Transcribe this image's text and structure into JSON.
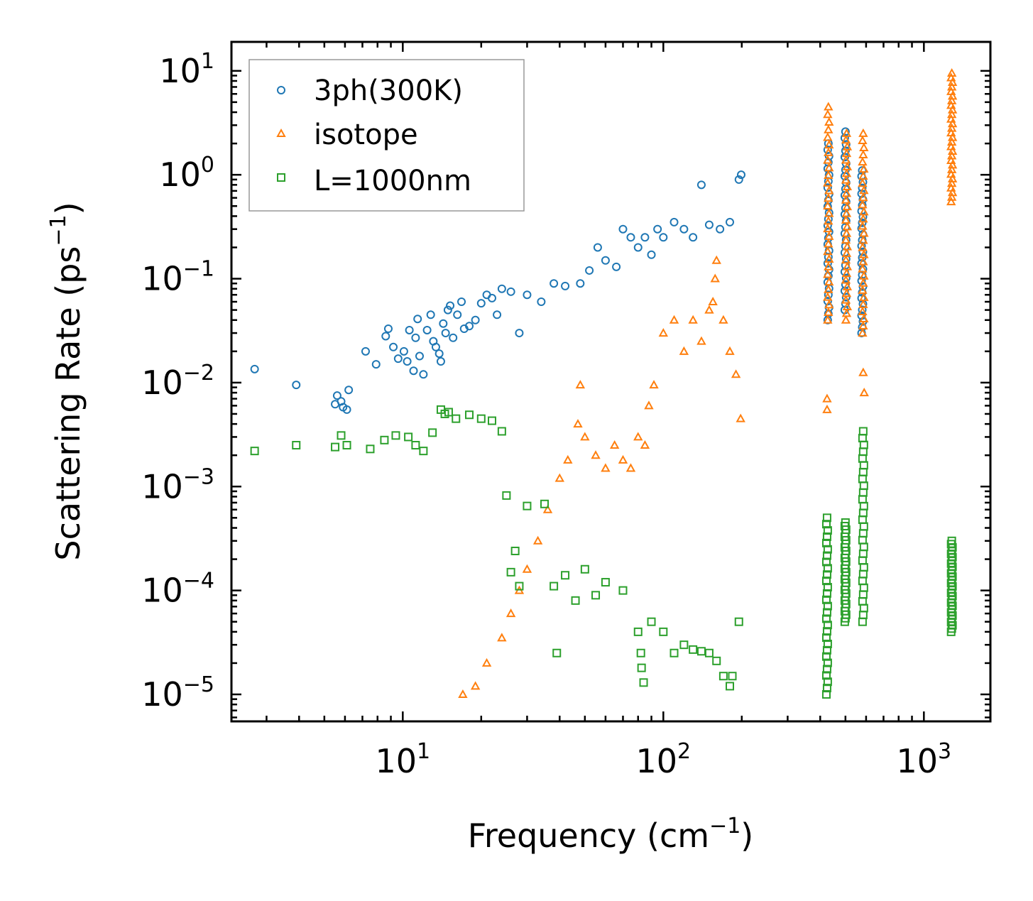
{
  "chart_data": {
    "type": "scatter",
    "xscale": "log",
    "yscale": "log",
    "xlim": [
      2.2,
      1800
    ],
    "ylim": [
      5.5e-06,
      19
    ],
    "xlabel": {
      "main": "Frequency (cm",
      "exp": "−1",
      "close": ")"
    },
    "ylabel": {
      "main": "Scattering Rate (ps",
      "exp": "−1",
      "close": ")"
    },
    "x_ticks": [
      {
        "value": 10,
        "base": "10",
        "exp": "1"
      },
      {
        "value": 100,
        "base": "10",
        "exp": "2"
      },
      {
        "value": 1000,
        "base": "10",
        "exp": "3"
      }
    ],
    "y_ticks": [
      {
        "value": 1e-05,
        "base": "10",
        "exp": "−5"
      },
      {
        "value": 0.0001,
        "base": "10",
        "exp": "−4"
      },
      {
        "value": 0.001,
        "base": "10",
        "exp": "−3"
      },
      {
        "value": 0.01,
        "base": "10",
        "exp": "−2"
      },
      {
        "value": 0.1,
        "base": "10",
        "exp": "−1"
      },
      {
        "value": 1,
        "base": "10",
        "exp": "0"
      },
      {
        "value": 10,
        "base": "10",
        "exp": "1"
      }
    ],
    "legend_position": "top-left",
    "series": [
      {
        "name": "3ph(300K)",
        "label": "3ph(300K)",
        "marker": "circle",
        "color": "#1f77b4",
        "points": [
          [
            2.7,
            0.0135
          ],
          [
            3.9,
            0.0095
          ],
          [
            5.6,
            0.0075
          ],
          [
            5.5,
            0.0062
          ],
          [
            5.8,
            0.0066
          ],
          [
            6.2,
            0.0085
          ],
          [
            6.1,
            0.0055
          ],
          [
            5.9,
            0.0058
          ],
          [
            7.2,
            0.02
          ],
          [
            7.9,
            0.015
          ],
          [
            8.6,
            0.028
          ],
          [
            8.8,
            0.033
          ],
          [
            9.2,
            0.022
          ],
          [
            9.6,
            0.017
          ],
          [
            10.1,
            0.02
          ],
          [
            10.4,
            0.016
          ],
          [
            10.6,
            0.032
          ],
          [
            11.0,
            0.013
          ],
          [
            11.2,
            0.027
          ],
          [
            11.4,
            0.041
          ],
          [
            11.6,
            0.018
          ],
          [
            12.0,
            0.012
          ],
          [
            12.4,
            0.032
          ],
          [
            12.8,
            0.045
          ],
          [
            13.1,
            0.025
          ],
          [
            13.4,
            0.022
          ],
          [
            13.8,
            0.019
          ],
          [
            14.0,
            0.016
          ],
          [
            14.3,
            0.037
          ],
          [
            14.6,
            0.03
          ],
          [
            14.9,
            0.05
          ],
          [
            15.2,
            0.055
          ],
          [
            15.6,
            0.027
          ],
          [
            16.2,
            0.045
          ],
          [
            16.8,
            0.06
          ],
          [
            17.2,
            0.033
          ],
          [
            18,
            0.035
          ],
          [
            19,
            0.04
          ],
          [
            20,
            0.058
          ],
          [
            21,
            0.07
          ],
          [
            22,
            0.065
          ],
          [
            23,
            0.045
          ],
          [
            24,
            0.08
          ],
          [
            26,
            0.075
          ],
          [
            28,
            0.03
          ],
          [
            30,
            0.07
          ],
          [
            34,
            0.06
          ],
          [
            38,
            0.09
          ],
          [
            42,
            0.085
          ],
          [
            48,
            0.09
          ],
          [
            52,
            0.12
          ],
          [
            56,
            0.2
          ],
          [
            60,
            0.15
          ],
          [
            66,
            0.13
          ],
          [
            70,
            0.3
          ],
          [
            75,
            0.25
          ],
          [
            80,
            0.2
          ],
          [
            85,
            0.25
          ],
          [
            90,
            0.17
          ],
          [
            95,
            0.3
          ],
          [
            100,
            0.25
          ],
          [
            110,
            0.35
          ],
          [
            120,
            0.3
          ],
          [
            130,
            0.25
          ],
          [
            140,
            0.8
          ],
          [
            150,
            0.33
          ],
          [
            165,
            0.3
          ],
          [
            180,
            0.35
          ],
          [
            195,
            0.9
          ],
          [
            199,
            1.0
          ]
        ],
        "band_ranges": [
          [
            430,
            0.04,
            2.0
          ],
          [
            500,
            0.05,
            2.6
          ],
          [
            580,
            0.03,
            1.1
          ]
        ]
      },
      {
        "name": "isotope",
        "label": "isotope",
        "marker": "triangle",
        "color": "#ff7f0e",
        "points": [
          [
            17,
            1e-05
          ],
          [
            19,
            1.2e-05
          ],
          [
            21,
            2e-05
          ],
          [
            24,
            3.5e-05
          ],
          [
            26,
            6e-05
          ],
          [
            28,
            0.0001
          ],
          [
            30,
            0.00016
          ],
          [
            33,
            0.0003
          ],
          [
            36,
            0.0006
          ],
          [
            40,
            0.0012
          ],
          [
            43,
            0.0018
          ],
          [
            47,
            0.004
          ],
          [
            48,
            0.0095
          ],
          [
            50,
            0.003
          ],
          [
            55,
            0.002
          ],
          [
            60,
            0.0015
          ],
          [
            65,
            0.0025
          ],
          [
            70,
            0.0018
          ],
          [
            75,
            0.0015
          ],
          [
            80,
            0.003
          ],
          [
            85,
            0.0025
          ],
          [
            88,
            0.006
          ],
          [
            92,
            0.0095
          ],
          [
            100,
            0.03
          ],
          [
            110,
            0.04
          ],
          [
            120,
            0.02
          ],
          [
            130,
            0.04
          ],
          [
            140,
            0.025
          ],
          [
            150,
            0.05
          ],
          [
            155,
            0.06
          ],
          [
            158,
            0.1
          ],
          [
            160,
            0.15
          ],
          [
            170,
            0.04
          ],
          [
            180,
            0.02
          ],
          [
            190,
            0.012
          ],
          [
            198,
            0.0045
          ],
          [
            590,
            0.008
          ],
          [
            585,
            0.0125
          ],
          [
            425,
            0.0055
          ],
          [
            425,
            0.007
          ]
        ],
        "band_ranges": [
          [
            430,
            0.04,
            4.5
          ],
          [
            505,
            0.04,
            2.5
          ],
          [
            585,
            0.03,
            2.5
          ],
          [
            1280,
            0.55,
            9.5
          ]
        ]
      },
      {
        "name": "L=1000nm",
        "label": "L=1000nm",
        "marker": "square",
        "color": "#2ca02c",
        "points": [
          [
            2.7,
            0.0022
          ],
          [
            3.9,
            0.0025
          ],
          [
            5.5,
            0.0024
          ],
          [
            5.8,
            0.0031
          ],
          [
            6.1,
            0.0025
          ],
          [
            7.5,
            0.0023
          ],
          [
            8.5,
            0.0028
          ],
          [
            9.4,
            0.0031
          ],
          [
            10.5,
            0.003
          ],
          [
            11.2,
            0.0025
          ],
          [
            12,
            0.0022
          ],
          [
            13,
            0.0033
          ],
          [
            14,
            0.0055
          ],
          [
            14.5,
            0.005
          ],
          [
            15,
            0.0052
          ],
          [
            16,
            0.0045
          ],
          [
            18,
            0.0049
          ],
          [
            20,
            0.0045
          ],
          [
            22,
            0.0043
          ],
          [
            24,
            0.0034
          ],
          [
            25,
            0.00082
          ],
          [
            26,
            0.00015
          ],
          [
            27,
            0.00024
          ],
          [
            28,
            0.00011
          ],
          [
            30,
            0.00065
          ],
          [
            35,
            0.00068
          ],
          [
            38,
            0.00011
          ],
          [
            39,
            2.5e-05
          ],
          [
            42,
            0.00014
          ],
          [
            46,
            8e-05
          ],
          [
            50,
            0.00016
          ],
          [
            55,
            9e-05
          ],
          [
            60,
            0.00012
          ],
          [
            70,
            0.0001
          ],
          [
            80,
            4e-05
          ],
          [
            82,
            2.5e-05
          ],
          [
            82.5,
            1.8e-05
          ],
          [
            84,
            1.3e-05
          ],
          [
            90,
            5e-05
          ],
          [
            100,
            4e-05
          ],
          [
            110,
            2.5e-05
          ],
          [
            120,
            3e-05
          ],
          [
            130,
            2.7e-05
          ],
          [
            140,
            2.6e-05
          ],
          [
            150,
            2.5e-05
          ],
          [
            160,
            2.1e-05
          ],
          [
            170,
            1.5e-05
          ],
          [
            180,
            1.2e-05
          ],
          [
            184,
            1.5e-05
          ],
          [
            195,
            5e-05
          ]
        ],
        "band_ranges": [
          [
            425,
            1e-05,
            0.0005
          ],
          [
            500,
            5e-05,
            0.00045
          ],
          [
            585,
            5e-05,
            0.0034
          ],
          [
            1280,
            4e-05,
            0.0003
          ]
        ]
      }
    ]
  }
}
